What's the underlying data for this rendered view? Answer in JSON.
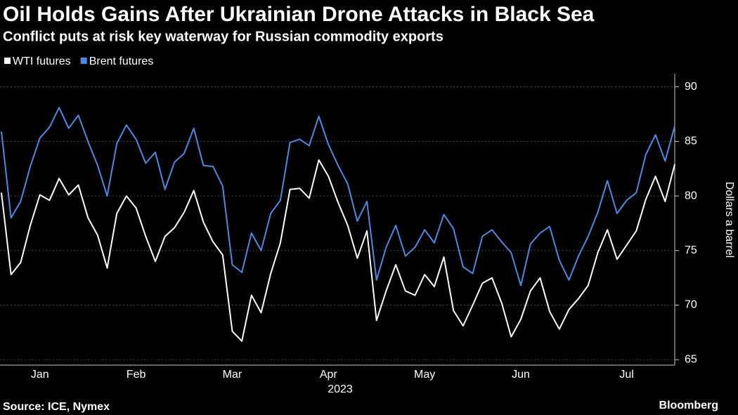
{
  "chart_data": {
    "type": "line",
    "title": "Oil Holds Gains After Ukrainian Drone Attacks in Black Sea",
    "subtitle": "Conflict puts at risk key waterway for Russian commodity exports",
    "xlabel": "2023",
    "ylabel": "Dollars a barrel",
    "source": "Source: ICE, Nymex",
    "brand": "Bloomberg",
    "categories": [
      null,
      null,
      null,
      null,
      "Jan",
      null,
      null,
      null,
      null,
      null,
      null,
      null,
      null,
      null,
      "Feb",
      null,
      null,
      null,
      null,
      null,
      null,
      null,
      null,
      null,
      "Mar",
      null,
      null,
      null,
      null,
      null,
      null,
      null,
      null,
      null,
      "Apr",
      null,
      null,
      null,
      null,
      null,
      null,
      null,
      null,
      null,
      "May",
      null,
      null,
      null,
      null,
      null,
      null,
      null,
      null,
      null,
      "Jun",
      null,
      null,
      null,
      null,
      null,
      null,
      null,
      null,
      null,
      null,
      "Jul",
      null,
      null,
      null,
      null,
      null
    ],
    "series": [
      {
        "name": "WTI futures",
        "color": "#ffffff",
        "values": [
          80.3,
          72.8,
          73.9,
          77.3,
          80.1,
          79.6,
          81.6,
          80.1,
          81.0,
          78.0,
          76.4,
          73.4,
          78.4,
          80.0,
          78.9,
          76.3,
          74.0,
          76.3,
          77.1,
          78.5,
          80.5,
          77.6,
          75.8,
          74.6,
          67.6,
          66.7,
          70.9,
          69.3,
          72.9,
          75.7,
          80.6,
          80.7,
          79.8,
          83.3,
          81.8,
          79.4,
          77.3,
          74.3,
          76.8,
          68.6,
          71.3,
          73.7,
          71.3,
          70.9,
          72.8,
          71.7,
          74.4,
          69.5,
          68.1,
          70.0,
          72.0,
          72.5,
          70.2,
          67.1,
          68.7,
          71.3,
          72.5,
          69.4,
          67.8,
          69.6,
          70.6,
          71.8,
          74.8,
          76.9,
          74.2,
          75.5,
          76.8,
          79.7,
          81.8,
          79.5,
          82.9
        ]
      },
      {
        "name": "Brent futures",
        "color": "#4a8ae6",
        "values": [
          85.9,
          78.0,
          79.5,
          82.7,
          85.3,
          86.3,
          88.1,
          86.2,
          87.4,
          85.0,
          82.8,
          80.0,
          84.8,
          86.5,
          85.2,
          83.0,
          84.0,
          80.6,
          83.1,
          83.9,
          86.2,
          82.8,
          82.7,
          80.9,
          73.7,
          73.0,
          76.6,
          75.0,
          78.4,
          79.6,
          84.9,
          85.2,
          84.6,
          87.3,
          84.7,
          82.8,
          81.1,
          77.7,
          79.5,
          72.3,
          75.3,
          77.3,
          74.5,
          75.3,
          76.9,
          75.7,
          78.3,
          77.0,
          73.5,
          72.9,
          76.3,
          76.9,
          75.8,
          74.8,
          71.8,
          75.6,
          76.6,
          77.2,
          74.1,
          72.3,
          74.5,
          76.3,
          78.5,
          81.4,
          78.4,
          79.6,
          80.3,
          83.8,
          85.6,
          83.2,
          86.4
        ]
      }
    ],
    "ylim": [
      64.5,
      91.2
    ],
    "yticks": [
      65,
      70,
      75,
      80,
      85,
      90
    ],
    "grid": true,
    "legend": "top-left"
  }
}
